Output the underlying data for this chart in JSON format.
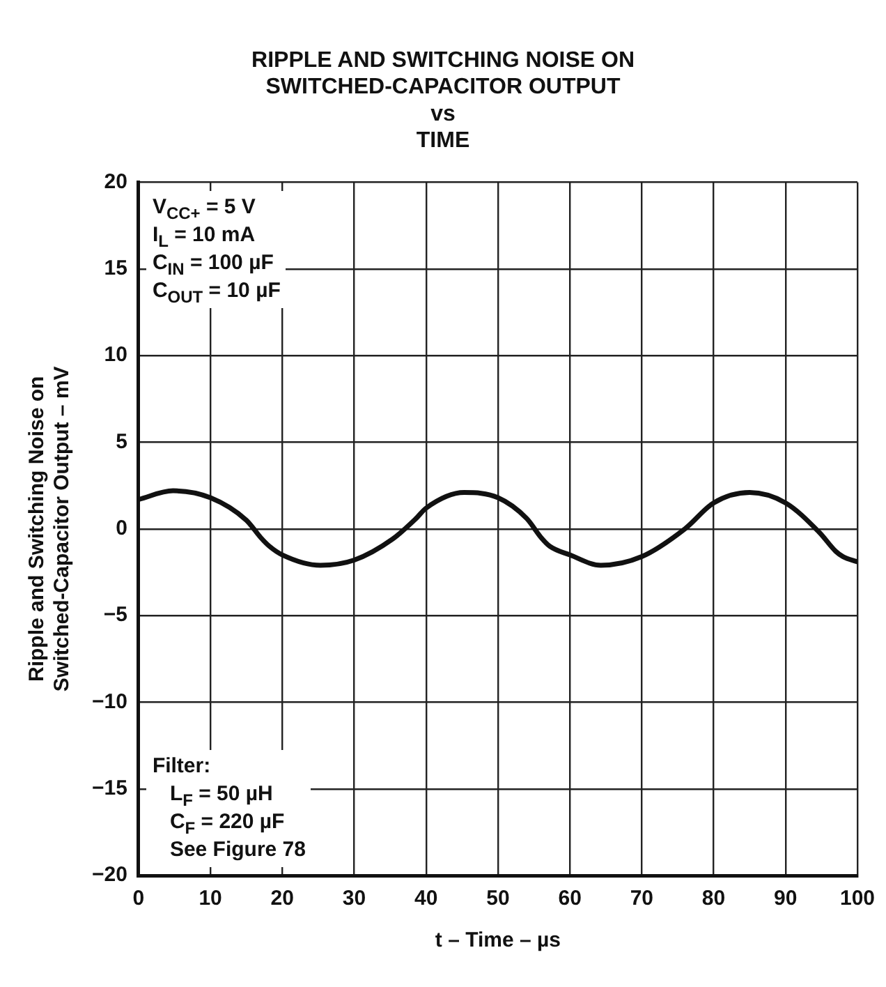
{
  "chart_data": {
    "type": "line",
    "title": "RIPPLE AND SWITCHING NOISE ON\nSWITCHED-CAPACITOR OUTPUT\nvs\nTIME",
    "xlabel": "t – Time – µs",
    "ylabel": "Ripple and Switching Noise on\nSwitched-Capacitor Output – mV",
    "x": [
      0,
      4.8,
      10,
      15,
      17,
      18.2,
      20,
      25.3,
      30,
      35.3,
      38.6,
      40,
      45.3,
      50,
      54,
      56,
      57.2,
      60,
      64.3,
      70,
      76,
      80,
      85,
      90,
      94.7,
      97,
      98,
      100
    ],
    "series": [
      {
        "color": "#111111",
        "values": [
          1.7,
          2.2,
          1.8,
          0.5,
          -0.5,
          -1.0,
          -1.5,
          -2.1,
          -1.8,
          -0.6,
          0.6,
          1.2,
          2.1,
          1.8,
          0.6,
          -0.5,
          -1.0,
          -1.5,
          -2.1,
          -1.6,
          0.0,
          1.5,
          2.1,
          1.5,
          -0.2,
          -1.3,
          -1.6,
          -1.9
        ]
      }
    ],
    "xlim": [
      0,
      100
    ],
    "xticks": [
      0,
      10,
      20,
      30,
      40,
      50,
      60,
      70,
      80,
      90,
      100
    ],
    "ylim": [
      -20,
      20
    ],
    "yticks": [
      {
        "value": -20,
        "label": "−20"
      },
      {
        "value": -15,
        "label": "−15"
      },
      {
        "value": -10,
        "label": "−10"
      },
      {
        "value": -5,
        "label": "−5"
      },
      0,
      5,
      10,
      15,
      20
    ],
    "grid": true,
    "legend": false,
    "marker": "none",
    "line_style": "solid",
    "annotations": [
      "V$_{CC+}$ = 5 V\nI$_{L}$ = 10 mA\nC$_{IN}$ = 100 µF\nC$_{OUT}$ = 10 µF",
      "Filter:\n   L$_{F}$ = 50 µH\n   C$_{F}$ = 220 µF\n   See Figure 78"
    ]
  }
}
